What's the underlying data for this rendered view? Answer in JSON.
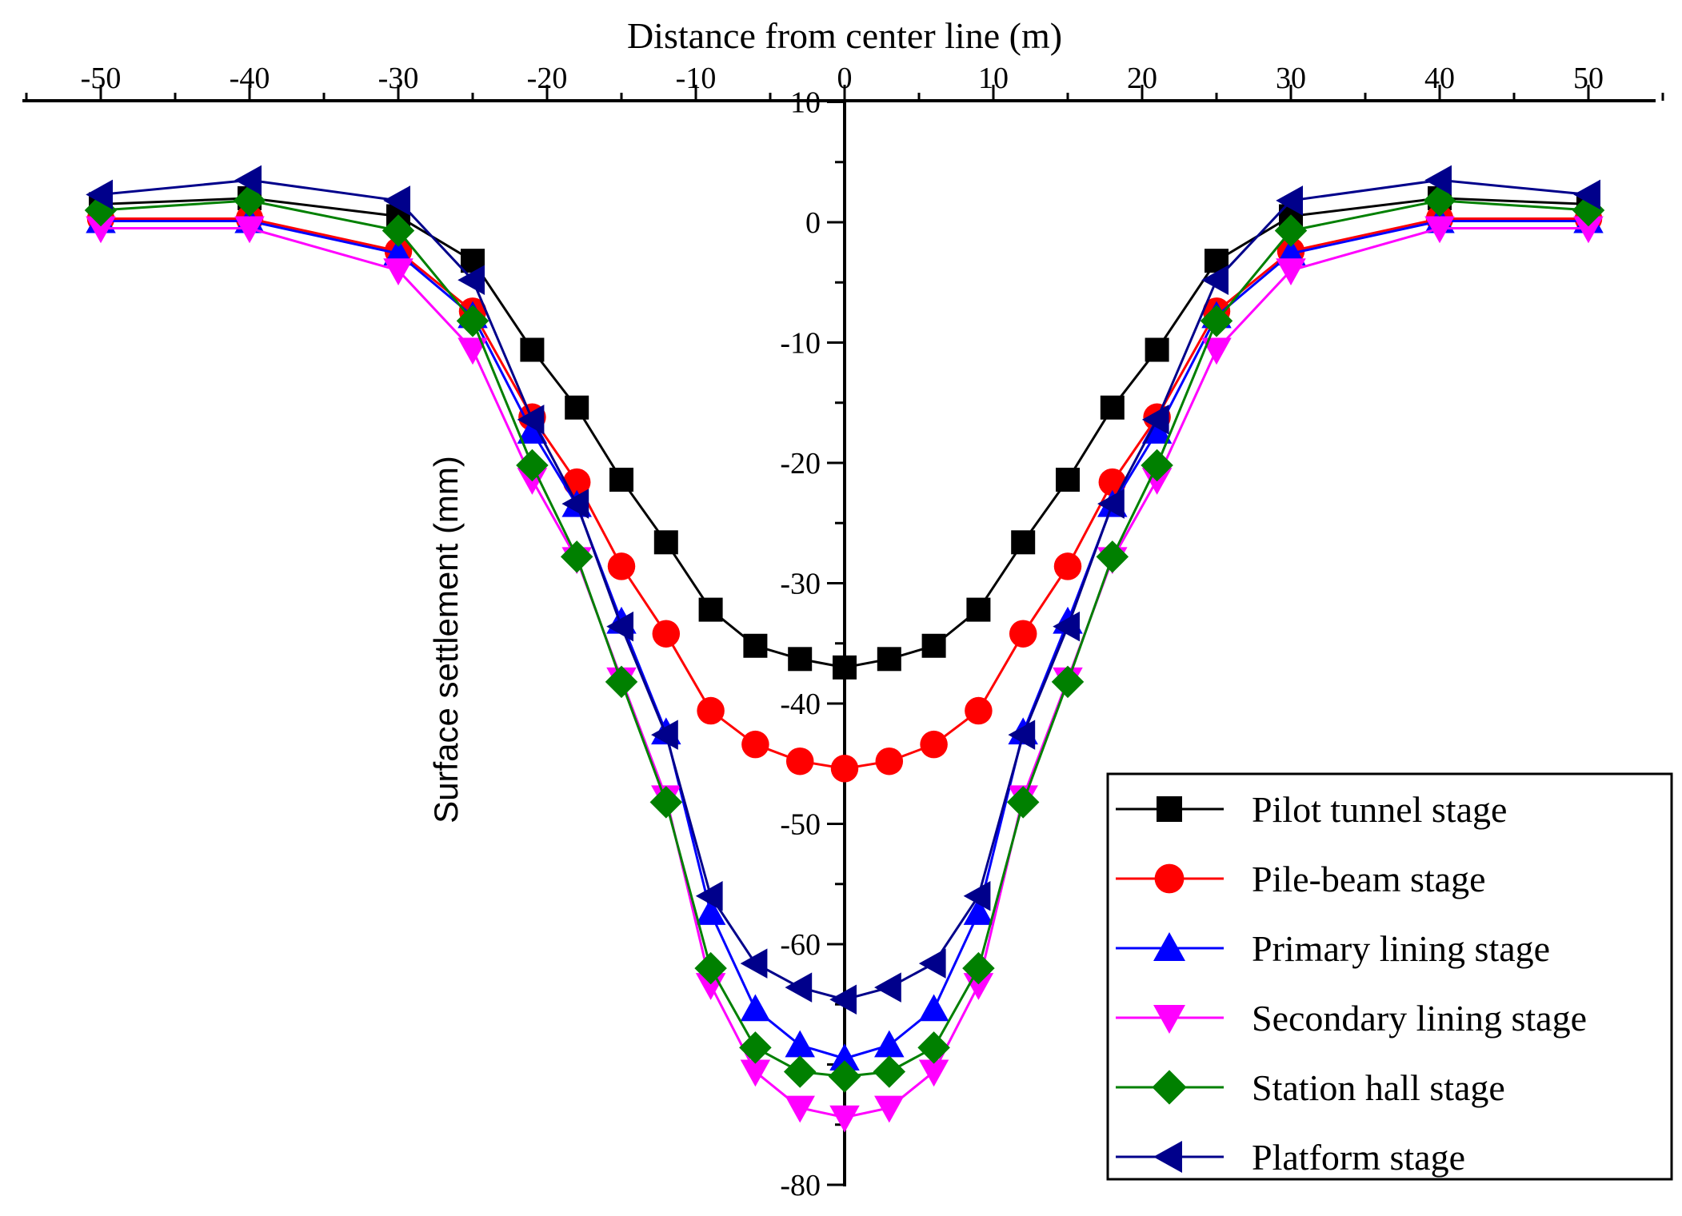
{
  "chart_data": {
    "type": "line",
    "title": "",
    "xlabel": "Distance from center line (m)",
    "ylabel": "Surface settlement (mm)",
    "xlim": [
      -55,
      55
    ],
    "ylim": [
      -80,
      10
    ],
    "x_ticks": [
      -50,
      -40,
      -30,
      -20,
      -10,
      0,
      10,
      20,
      30,
      40,
      50
    ],
    "y_ticks": [
      10,
      0,
      -10,
      -20,
      -30,
      -40,
      -50,
      -60,
      -80
    ],
    "x_axis_position": "top",
    "y_axis_position": "center (x = 0)",
    "legend_position": "bottom-right",
    "x": [
      -50,
      -40,
      -30,
      -25,
      -21,
      -18,
      -15,
      -12,
      -9,
      -6,
      -3,
      0,
      3,
      6,
      9,
      12,
      15,
      18,
      21,
      25,
      30,
      40,
      50
    ],
    "series": [
      {
        "name": "Pilot tunnel stage",
        "color": "#000000",
        "marker": "square",
        "values": [
          1.5,
          2.0,
          0.5,
          -3.2,
          -10.6,
          -15.4,
          -21.4,
          -26.6,
          -32.2,
          -35.2,
          -36.3,
          -37.0,
          -36.3,
          -35.2,
          -32.2,
          -26.6,
          -21.4,
          -15.4,
          -10.6,
          -3.2,
          0.5,
          2.0,
          1.5
        ]
      },
      {
        "name": "Pile-beam stage",
        "color": "#ff0000",
        "marker": "circle",
        "values": [
          0.3,
          0.3,
          -2.4,
          -7.4,
          -16.2,
          -21.6,
          -28.6,
          -34.2,
          -40.6,
          -43.4,
          -44.8,
          -45.4,
          -44.8,
          -43.4,
          -40.6,
          -34.2,
          -28.6,
          -21.6,
          -16.2,
          -7.4,
          -2.4,
          0.3,
          0.3
        ]
      },
      {
        "name": "Primary lining stage",
        "color": "#0000ff",
        "marker": "triangle-up",
        "values": [
          0.1,
          0.1,
          -2.6,
          -7.8,
          -17.4,
          -23.5,
          -33.2,
          -42.4,
          -57.4,
          -65.4,
          -68.4,
          -69.5,
          -68.4,
          -65.4,
          -57.4,
          -42.4,
          -33.2,
          -23.5,
          -17.4,
          -7.8,
          -2.6,
          0.1,
          0.1
        ]
      },
      {
        "name": "Secondary lining stage",
        "color": "#ff00ff",
        "marker": "triangle-down",
        "values": [
          -0.5,
          -0.5,
          -4.0,
          -10.6,
          -21.4,
          -28.0,
          -38.0,
          -47.8,
          -63.4,
          -70.6,
          -73.6,
          -74.4,
          -73.6,
          -70.6,
          -63.4,
          -47.8,
          -38.0,
          -28.0,
          -21.4,
          -10.6,
          -4.0,
          -0.5,
          -0.5
        ]
      },
      {
        "name": "Station hall stage",
        "color": "#008000",
        "marker": "diamond",
        "values": [
          1.0,
          1.8,
          -0.7,
          -8.2,
          -20.2,
          -27.8,
          -38.2,
          -48.2,
          -62.0,
          -68.6,
          -70.6,
          -71.0,
          -70.6,
          -68.6,
          -62.0,
          -48.2,
          -38.2,
          -27.8,
          -20.2,
          -8.2,
          -0.7,
          1.8,
          1.0
        ]
      },
      {
        "name": "Platform stage",
        "color": "#00008b",
        "marker": "triangle-left",
        "values": [
          2.3,
          3.5,
          1.8,
          -4.8,
          -16.4,
          -23.4,
          -33.6,
          -42.6,
          -56.0,
          -61.6,
          -63.6,
          -64.6,
          -63.6,
          -61.6,
          -56.0,
          -42.6,
          -33.6,
          -23.4,
          -16.4,
          -4.8,
          1.8,
          3.5,
          2.3
        ]
      }
    ]
  }
}
